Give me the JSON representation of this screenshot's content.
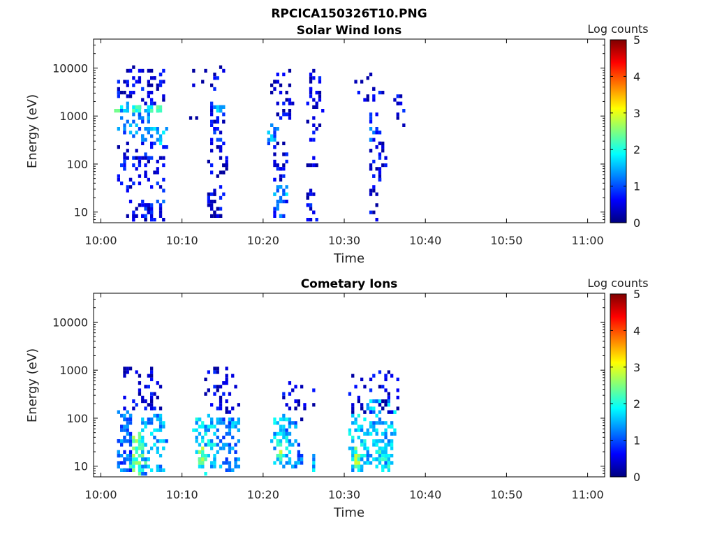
{
  "figure_title": "RPCICA150326T10.PNG",
  "colormap_stops": [
    "#00007f",
    "#0000ff",
    "#007fff",
    "#00ffff",
    "#7fff7f",
    "#ffff00",
    "#ff7f00",
    "#ff0000",
    "#7f0000"
  ],
  "chart_data": [
    {
      "type": "heatmap",
      "title": "Solar Wind Ions",
      "xlabel": "Time",
      "ylabel": "Energy (eV)",
      "x_ticks": [
        "10:00",
        "10:10",
        "10:20",
        "10:30",
        "10:40",
        "10:50",
        "11:00"
      ],
      "y_ticks": [
        "10",
        "100",
        "1000",
        "10000"
      ],
      "y_scale": "log",
      "y_range_eV": [
        6,
        40000
      ],
      "colorbar": {
        "label": "Log counts",
        "range": [
          0,
          5
        ],
        "ticks": [
          "0",
          "1",
          "2",
          "3",
          "4",
          "5"
        ]
      },
      "bursts": [
        {
          "t": [
            10.05,
            10.1
          ],
          "e": [
            6,
            20
          ],
          "c": 0.4,
          "n": 22
        },
        {
          "t": [
            10.03,
            10.1
          ],
          "e": [
            30,
            300
          ],
          "c": 0.5,
          "n": 40
        },
        {
          "t": [
            10.03,
            10.1
          ],
          "e": [
            400,
            2000
          ],
          "c": 1.2,
          "n": 40
        },
        {
          "t": [
            10.03,
            10.08
          ],
          "e": [
            1300,
            1800
          ],
          "c": 2.0,
          "n": 14
        },
        {
          "t": [
            10.03,
            10.1
          ],
          "e": [
            2500,
            12000
          ],
          "c": 0.5,
          "n": 30
        },
        {
          "t": [
            10.08,
            10.13
          ],
          "e": [
            6,
            20
          ],
          "c": 0.8,
          "n": 22
        },
        {
          "t": [
            10.08,
            10.13
          ],
          "e": [
            300,
            700
          ],
          "c": 1.5,
          "n": 22
        },
        {
          "t": [
            10.09,
            10.13
          ],
          "e": [
            30,
            300
          ],
          "c": 0.5,
          "n": 22
        },
        {
          "t": [
            10.09,
            10.12
          ],
          "e": [
            1300,
            1800
          ],
          "c": 2.0,
          "n": 14
        },
        {
          "t": [
            10.09,
            10.13
          ],
          "e": [
            2000,
            12000
          ],
          "c": 0.4,
          "n": 22
        },
        {
          "t": [
            10.18,
            10.27
          ],
          "e": [
            1000,
            14000
          ],
          "c": 0.5,
          "n": 16
        },
        {
          "t": [
            10.22,
            10.25
          ],
          "e": [
            6,
            40
          ],
          "c": 0.4,
          "n": 30
        },
        {
          "t": [
            10.22,
            10.25
          ],
          "e": [
            200,
            2000
          ],
          "c": 0.6,
          "n": 30
        },
        {
          "t": [
            10.23,
            10.25
          ],
          "e": [
            1400,
            1800
          ],
          "c": 1.4,
          "n": 10
        },
        {
          "t": [
            10.22,
            10.26
          ],
          "e": [
            50,
            300
          ],
          "c": 0.4,
          "n": 18
        },
        {
          "t": [
            10.35,
            10.38
          ],
          "e": [
            20,
            40
          ],
          "c": 1.4,
          "n": 12
        },
        {
          "t": [
            10.35,
            10.38
          ],
          "e": [
            6,
            20
          ],
          "c": 0.9,
          "n": 12
        },
        {
          "t": [
            10.34,
            10.36
          ],
          "e": [
            300,
            700
          ],
          "c": 1.3,
          "n": 14
        },
        {
          "t": [
            10.35,
            10.39
          ],
          "e": [
            1000,
            10000
          ],
          "c": 0.4,
          "n": 30
        },
        {
          "t": [
            10.35,
            10.38
          ],
          "e": [
            50,
            300
          ],
          "c": 0.4,
          "n": 22
        },
        {
          "t": [
            10.42,
            10.44
          ],
          "e": [
            6,
            30
          ],
          "c": 0.5,
          "n": 14
        },
        {
          "t": [
            10.42,
            10.45
          ],
          "e": [
            100,
            10000
          ],
          "c": 0.4,
          "n": 36
        },
        {
          "t": [
            10.52,
            10.58
          ],
          "e": [
            2000,
            8000
          ],
          "c": 0.4,
          "n": 14
        },
        {
          "t": [
            10.55,
            10.57
          ],
          "e": [
            300,
            1500
          ],
          "c": 1.0,
          "n": 14
        },
        {
          "t": [
            10.55,
            10.58
          ],
          "e": [
            50,
            300
          ],
          "c": 0.5,
          "n": 26
        },
        {
          "t": [
            10.55,
            10.57
          ],
          "e": [
            6,
            40
          ],
          "c": 0.4,
          "n": 12
        },
        {
          "t": [
            10.6,
            10.62
          ],
          "e": [
            600,
            3000
          ],
          "c": 0.5,
          "n": 10
        }
      ]
    },
    {
      "type": "heatmap",
      "title": "Cometary Ions",
      "xlabel": "Time",
      "ylabel": "Energy (eV)",
      "x_ticks": [
        "10:00",
        "10:10",
        "10:20",
        "10:30",
        "10:40",
        "10:50",
        "11:00"
      ],
      "y_ticks": [
        "10",
        "100",
        "1000",
        "10000"
      ],
      "y_scale": "log",
      "y_range_eV": [
        6,
        40000
      ],
      "colorbar": {
        "label": "Log counts",
        "range": [
          0,
          5
        ],
        "ticks": [
          "0",
          "1",
          "2",
          "3",
          "4",
          "5"
        ]
      },
      "bursts": [
        {
          "t": [
            10.03,
            10.06
          ],
          "e": [
            8,
            150
          ],
          "c": 1.1,
          "n": 60
        },
        {
          "t": [
            10.06,
            10.09
          ],
          "e": [
            8,
            60
          ],
          "c": 2.3,
          "n": 50
        },
        {
          "t": [
            10.08,
            10.13
          ],
          "e": [
            8,
            120
          ],
          "c": 1.4,
          "n": 60
        },
        {
          "t": [
            10.04,
            10.12
          ],
          "e": [
            150,
            1200
          ],
          "c": 0.4,
          "n": 40
        },
        {
          "t": [
            10.19,
            10.23
          ],
          "e": [
            8,
            120
          ],
          "c": 1.6,
          "n": 60
        },
        {
          "t": [
            10.2,
            10.21
          ],
          "e": [
            8,
            25
          ],
          "c": 2.5,
          "n": 16
        },
        {
          "t": [
            10.23,
            10.28
          ],
          "e": [
            8,
            120
          ],
          "c": 1.3,
          "n": 70
        },
        {
          "t": [
            10.21,
            10.28
          ],
          "e": [
            150,
            1300
          ],
          "c": 0.4,
          "n": 36
        },
        {
          "t": [
            10.35,
            10.39
          ],
          "e": [
            10,
            120
          ],
          "c": 1.6,
          "n": 50
        },
        {
          "t": [
            10.36,
            10.37
          ],
          "e": [
            15,
            40
          ],
          "c": 2.5,
          "n": 12
        },
        {
          "t": [
            10.38,
            10.41
          ],
          "e": [
            8,
            100
          ],
          "c": 1.2,
          "n": 30
        },
        {
          "t": [
            10.43,
            10.44
          ],
          "e": [
            8,
            20
          ],
          "c": 1.5,
          "n": 10
        },
        {
          "t": [
            10.37,
            10.44
          ],
          "e": [
            100,
            600
          ],
          "c": 0.4,
          "n": 18
        },
        {
          "t": [
            10.51,
            10.54
          ],
          "e": [
            8,
            150
          ],
          "c": 1.6,
          "n": 50
        },
        {
          "t": [
            10.52,
            10.53
          ],
          "e": [
            8,
            25
          ],
          "c": 2.5,
          "n": 12
        },
        {
          "t": [
            10.54,
            10.6
          ],
          "e": [
            10,
            250
          ],
          "c": 1.5,
          "n": 110
        },
        {
          "t": [
            10.56,
            10.59
          ],
          "e": [
            8,
            40
          ],
          "c": 1.9,
          "n": 30
        },
        {
          "t": [
            10.51,
            10.61
          ],
          "e": [
            150,
            1000
          ],
          "c": 0.4,
          "n": 40
        }
      ]
    }
  ]
}
